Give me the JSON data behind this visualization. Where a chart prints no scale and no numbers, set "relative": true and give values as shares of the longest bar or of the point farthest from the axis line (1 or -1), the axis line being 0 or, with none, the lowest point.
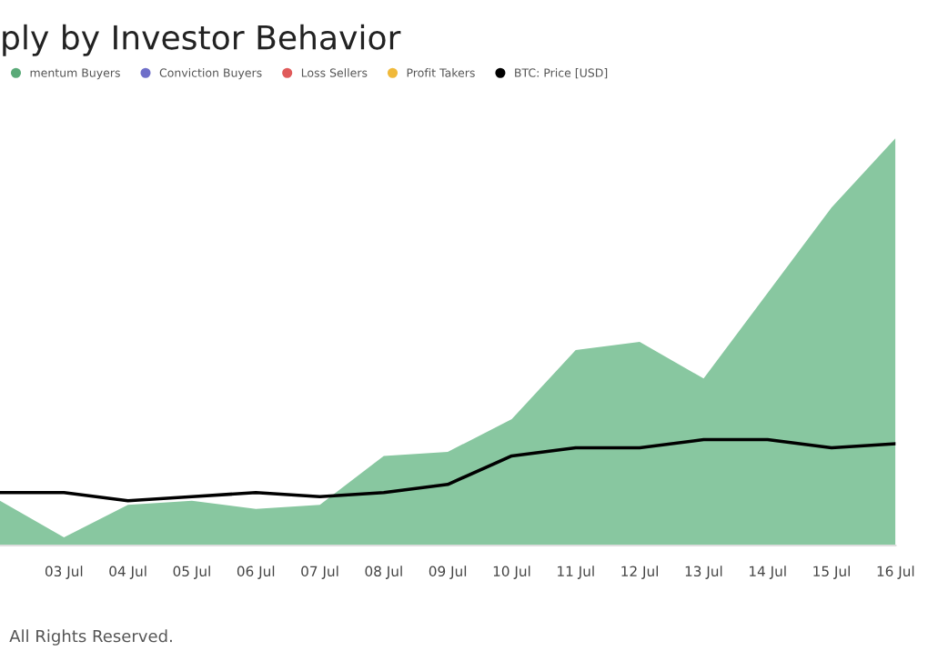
{
  "chart_data": {
    "type": "area",
    "title": "ply by Investor Behavior",
    "relative": true,
    "legend": "top left",
    "grid": false,
    "categories": [
      null,
      "03 Jul",
      "04 Jul",
      "05 Jul",
      "06 Jul",
      "07 Jul",
      "08 Jul",
      "09 Jul",
      "10 Jul",
      "11 Jul",
      "12 Jul",
      "13 Jul",
      "14 Jul",
      "15 Jul",
      "16 Jul"
    ],
    "series": [
      {
        "color": "#88c7a0",
        "values": [
          0.11,
          0.02,
          0.1,
          0.11,
          0.09,
          0.1,
          0.22,
          0.23,
          0.31,
          0.48,
          0.5,
          0.41,
          0.62,
          0.83,
          1
        ]
      },
      {
        "type": "line",
        "name": "mentum Buyers",
        "color": "#5aaa78",
        "values": [
          null,
          null,
          null,
          null,
          null,
          null,
          null,
          null,
          null,
          null,
          null,
          null,
          null,
          null,
          null
        ]
      },
      {
        "type": "line",
        "name": "Conviction Buyers",
        "color": "#6f6fc9",
        "values": [
          null,
          null,
          null,
          null,
          null,
          null,
          null,
          null,
          null,
          null,
          null,
          null,
          null,
          null,
          null
        ]
      },
      {
        "type": "line",
        "name": "Loss Sellers",
        "color": "#e05a5a",
        "values": [
          null,
          null,
          null,
          null,
          null,
          null,
          null,
          null,
          null,
          null,
          null,
          null,
          null,
          null,
          null
        ]
      },
      {
        "type": "line",
        "name": "Profit Takers",
        "color": "#f0b93a",
        "values": [
          null,
          null,
          null,
          null,
          null,
          null,
          null,
          null,
          null,
          null,
          null,
          null,
          null,
          null,
          null
        ]
      },
      {
        "type": "line",
        "name": "BTC: Price [USD]",
        "color": "#000000",
        "values": [
          0.13,
          0.13,
          0.11,
          0.12,
          0.13,
          0.12,
          0.13,
          0.15,
          0.22,
          0.24,
          0.24,
          0.26,
          0.26,
          0.24,
          0.25
        ]
      }
    ],
    "annotations": [
      "All Rights Reserved."
    ]
  }
}
